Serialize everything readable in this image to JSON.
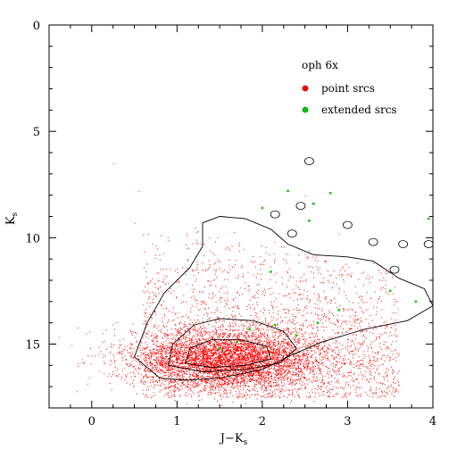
{
  "chart_data": {
    "type": "scatter",
    "title": "oph 6x",
    "xlabel": "J−K",
    "xlabel_sub": "s",
    "ylabel": "K",
    "ylabel_sub": "s",
    "xlim": [
      -0.5,
      4
    ],
    "ylim": [
      0,
      18
    ],
    "y_inverted": true,
    "x_ticks": [
      0,
      1,
      2,
      3,
      4
    ],
    "y_ticks": [
      0,
      5,
      10,
      15
    ],
    "legend_position": "top-right",
    "grid": false,
    "series": [
      {
        "name": "point srcs",
        "color": "#ff0000",
        "cluster": {
          "center": [
            1.6,
            15.7
          ],
          "spread": [
            0.55,
            1.0
          ],
          "count": 5200
        },
        "envelope": {
          "x_range": [
            0.6,
            3.6
          ],
          "y_range": [
            10.5,
            17.5
          ],
          "count": 2200
        },
        "outliers": [
          [
            0.25,
            6.5
          ],
          [
            0.55,
            7.8
          ],
          [
            0.5,
            9.3
          ],
          [
            1.3,
            11.5
          ],
          [
            0.9,
            12.5
          ],
          [
            2.5,
            8.0
          ],
          [
            2.9,
            9.8
          ],
          [
            3.3,
            11.2
          ]
        ]
      },
      {
        "name": "extended srcs",
        "color": "#00cc00",
        "points": [
          [
            2.0,
            8.6
          ],
          [
            2.3,
            7.8
          ],
          [
            2.6,
            8.4
          ],
          [
            2.8,
            7.9
          ],
          [
            2.55,
            9.2
          ],
          [
            1.7,
            14.9
          ],
          [
            1.85,
            14.3
          ],
          [
            2.15,
            14.1
          ],
          [
            2.4,
            14.6
          ],
          [
            3.5,
            12.5
          ],
          [
            3.8,
            13.0
          ],
          [
            2.9,
            13.4
          ],
          [
            2.1,
            11.6
          ],
          [
            3.95,
            9.1
          ],
          [
            1.5,
            15.2
          ],
          [
            2.65,
            14.0
          ]
        ]
      }
    ],
    "contours": [
      {
        "level": "outer",
        "points": [
          [
            0.8,
            16.6
          ],
          [
            0.5,
            15.6
          ],
          [
            0.65,
            14.0
          ],
          [
            0.85,
            12.6
          ],
          [
            1.15,
            11.4
          ],
          [
            1.3,
            10.4
          ],
          [
            1.3,
            9.3
          ],
          [
            1.5,
            9.0
          ],
          [
            1.8,
            9.1
          ],
          [
            2.1,
            9.6
          ],
          [
            2.3,
            10.3
          ],
          [
            2.6,
            10.8
          ],
          [
            3.0,
            10.9
          ],
          [
            3.3,
            11.1
          ],
          [
            3.6,
            11.9
          ],
          [
            3.9,
            12.4
          ],
          [
            4.0,
            13.2
          ],
          [
            3.7,
            13.9
          ],
          [
            3.2,
            14.3
          ],
          [
            2.7,
            14.9
          ],
          [
            2.35,
            15.5
          ],
          [
            2.0,
            16.2
          ],
          [
            1.5,
            16.6
          ],
          [
            1.1,
            16.7
          ]
        ]
      },
      {
        "level": "middle",
        "points": [
          [
            0.9,
            16.0
          ],
          [
            0.95,
            15.0
          ],
          [
            1.2,
            14.1
          ],
          [
            1.5,
            13.8
          ],
          [
            1.9,
            13.9
          ],
          [
            2.25,
            14.4
          ],
          [
            2.4,
            15.2
          ],
          [
            2.2,
            15.9
          ],
          [
            1.8,
            16.2
          ],
          [
            1.3,
            16.3
          ]
        ]
      },
      {
        "level": "inner",
        "points": [
          [
            1.1,
            15.9
          ],
          [
            1.15,
            15.2
          ],
          [
            1.4,
            14.8
          ],
          [
            1.75,
            14.8
          ],
          [
            2.05,
            15.1
          ],
          [
            2.1,
            15.7
          ],
          [
            1.8,
            16.0
          ],
          [
            1.4,
            16.1
          ]
        ]
      }
    ],
    "bumps": [
      [
        2.55,
        6.4
      ],
      [
        2.35,
        9.8
      ],
      [
        3.0,
        9.4
      ],
      [
        3.3,
        10.2
      ],
      [
        3.65,
        10.3
      ],
      [
        3.55,
        11.5
      ],
      [
        3.95,
        10.3
      ],
      [
        2.15,
        8.9
      ],
      [
        2.45,
        8.5
      ]
    ]
  }
}
